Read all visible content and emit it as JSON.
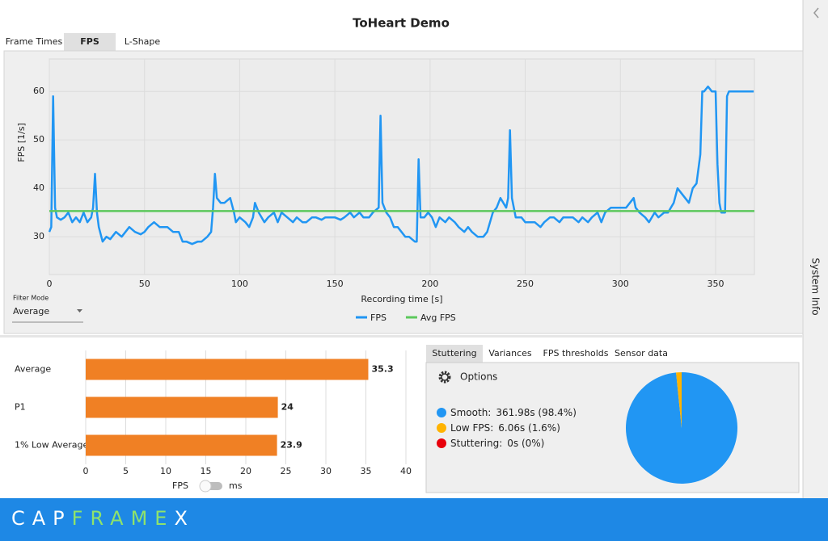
{
  "window": {
    "title": "ToHeart Demo",
    "tabs": [
      "Frame Times",
      "FPS",
      "L-Shape"
    ],
    "sidebar": "System Info"
  },
  "filter": {
    "label": "Filter Mode",
    "value": "Average"
  },
  "stats_panel": {
    "tabs": [
      "Stuttering",
      "Variances",
      "FPS thresholds",
      "Sensor data"
    ],
    "options": "Options"
  },
  "unit_toggle": [
    "FPS",
    "ms"
  ],
  "footer": {
    "logo": [
      "CAP",
      "FRAME",
      "X"
    ]
  },
  "chart_data": [
    {
      "type": "line",
      "x_label": "Recording time [s]",
      "y_label": "FPS [1/s]",
      "xlim": [
        0,
        370.4
      ],
      "ylim": [
        22.2,
        66.7
      ],
      "xticks": [
        0,
        50,
        100,
        150,
        200,
        250,
        300,
        350
      ],
      "yticks": [
        30,
        40,
        50,
        60
      ],
      "grid": true,
      "legend": "bottom",
      "series": [
        {
          "name": "FPS",
          "color": "#2196f3",
          "x": [
            0,
            1,
            2,
            3,
            4,
            6,
            8,
            10,
            12,
            14,
            16,
            18,
            20,
            22,
            23,
            24,
            25,
            26,
            28,
            30,
            32,
            35,
            38,
            40,
            42,
            45,
            48,
            50,
            52,
            55,
            58,
            60,
            62,
            65,
            68,
            70,
            72,
            75,
            78,
            80,
            83,
            85,
            86,
            87,
            88,
            90,
            92,
            95,
            97,
            98,
            100,
            103,
            105,
            107,
            108,
            110,
            113,
            115,
            118,
            120,
            122,
            125,
            128,
            130,
            133,
            135,
            138,
            140,
            143,
            145,
            148,
            150,
            153,
            155,
            158,
            160,
            163,
            165,
            168,
            170,
            173,
            174,
            175,
            177,
            179,
            181,
            183,
            185,
            187,
            189,
            192,
            193,
            194,
            195,
            197,
            199,
            201,
            203,
            205,
            208,
            210,
            213,
            215,
            218,
            220,
            222,
            225,
            228,
            230,
            233,
            235,
            237,
            240,
            241,
            242,
            243,
            245,
            248,
            250,
            253,
            255,
            258,
            260,
            263,
            265,
            268,
            270,
            273,
            275,
            278,
            280,
            283,
            285,
            288,
            290,
            292,
            295,
            298,
            300,
            303,
            305,
            307,
            308,
            310,
            313,
            315,
            318,
            320,
            323,
            325,
            328,
            330,
            332,
            334,
            336,
            338,
            340,
            342,
            343,
            344,
            346,
            348,
            350,
            351,
            352,
            353,
            355,
            356,
            357,
            360,
            365,
            370
          ],
          "values": [
            31,
            32,
            59,
            36,
            34,
            33.5,
            34,
            35,
            33,
            34,
            33,
            35,
            33,
            34,
            36,
            43,
            35,
            32,
            29,
            30,
            29.5,
            31,
            30,
            31,
            32,
            31,
            30.5,
            31,
            32,
            33,
            32,
            32,
            32,
            31,
            31,
            29,
            29,
            28.5,
            29,
            29,
            30,
            31,
            36,
            43,
            38,
            37,
            37,
            38,
            35,
            33,
            34,
            33,
            32,
            34,
            37,
            35,
            33,
            34,
            35,
            33,
            35,
            34,
            33,
            34,
            33,
            33,
            34,
            34,
            33.5,
            34,
            34,
            34,
            33.5,
            34,
            35,
            34,
            35,
            34,
            34,
            35,
            36,
            55,
            37,
            35,
            34,
            32,
            32,
            31,
            30,
            30,
            29,
            29,
            46,
            34,
            34,
            35,
            34,
            32,
            34,
            33,
            34,
            33,
            32,
            31,
            32,
            31,
            30,
            30,
            31,
            35,
            36,
            38,
            36,
            38,
            52,
            38,
            34,
            34,
            33,
            33,
            33,
            32,
            33,
            34,
            34,
            33,
            34,
            34,
            34,
            33,
            34,
            33,
            34,
            35,
            33,
            35,
            36,
            36,
            36,
            36,
            37,
            38,
            36,
            35,
            34,
            33,
            35,
            34,
            35,
            35,
            37,
            40,
            39,
            38,
            37,
            40,
            41,
            47,
            60,
            60,
            61,
            60,
            60,
            45,
            37,
            35,
            35,
            59,
            60,
            60,
            60,
            60
          ]
        },
        {
          "name": "Avg FPS",
          "color": "#5cc85c",
          "x": [
            0,
            370.4
          ],
          "values": [
            35.3,
            35.3
          ]
        }
      ]
    },
    {
      "type": "hbar",
      "categories": [
        "Average",
        "P1",
        "1% Low Average"
      ],
      "values": [
        35.3,
        24,
        23.9
      ],
      "color": "#f08024",
      "xlim": [
        0,
        40
      ],
      "xticks": [
        0,
        5,
        10,
        15,
        20,
        25,
        30,
        35,
        40
      ],
      "grid": true
    },
    {
      "type": "pie",
      "categories": [
        "Smooth:",
        "Low FPS:",
        "Stuttering:"
      ],
      "values": [
        98.4,
        1.6,
        0
      ],
      "value_labels": [
        "361.98s (98.4%)",
        "6.06s (1.6%)",
        "0s (0%)"
      ],
      "colors": [
        "#2196f3",
        "#ffb300",
        "#e8000b"
      ]
    }
  ]
}
